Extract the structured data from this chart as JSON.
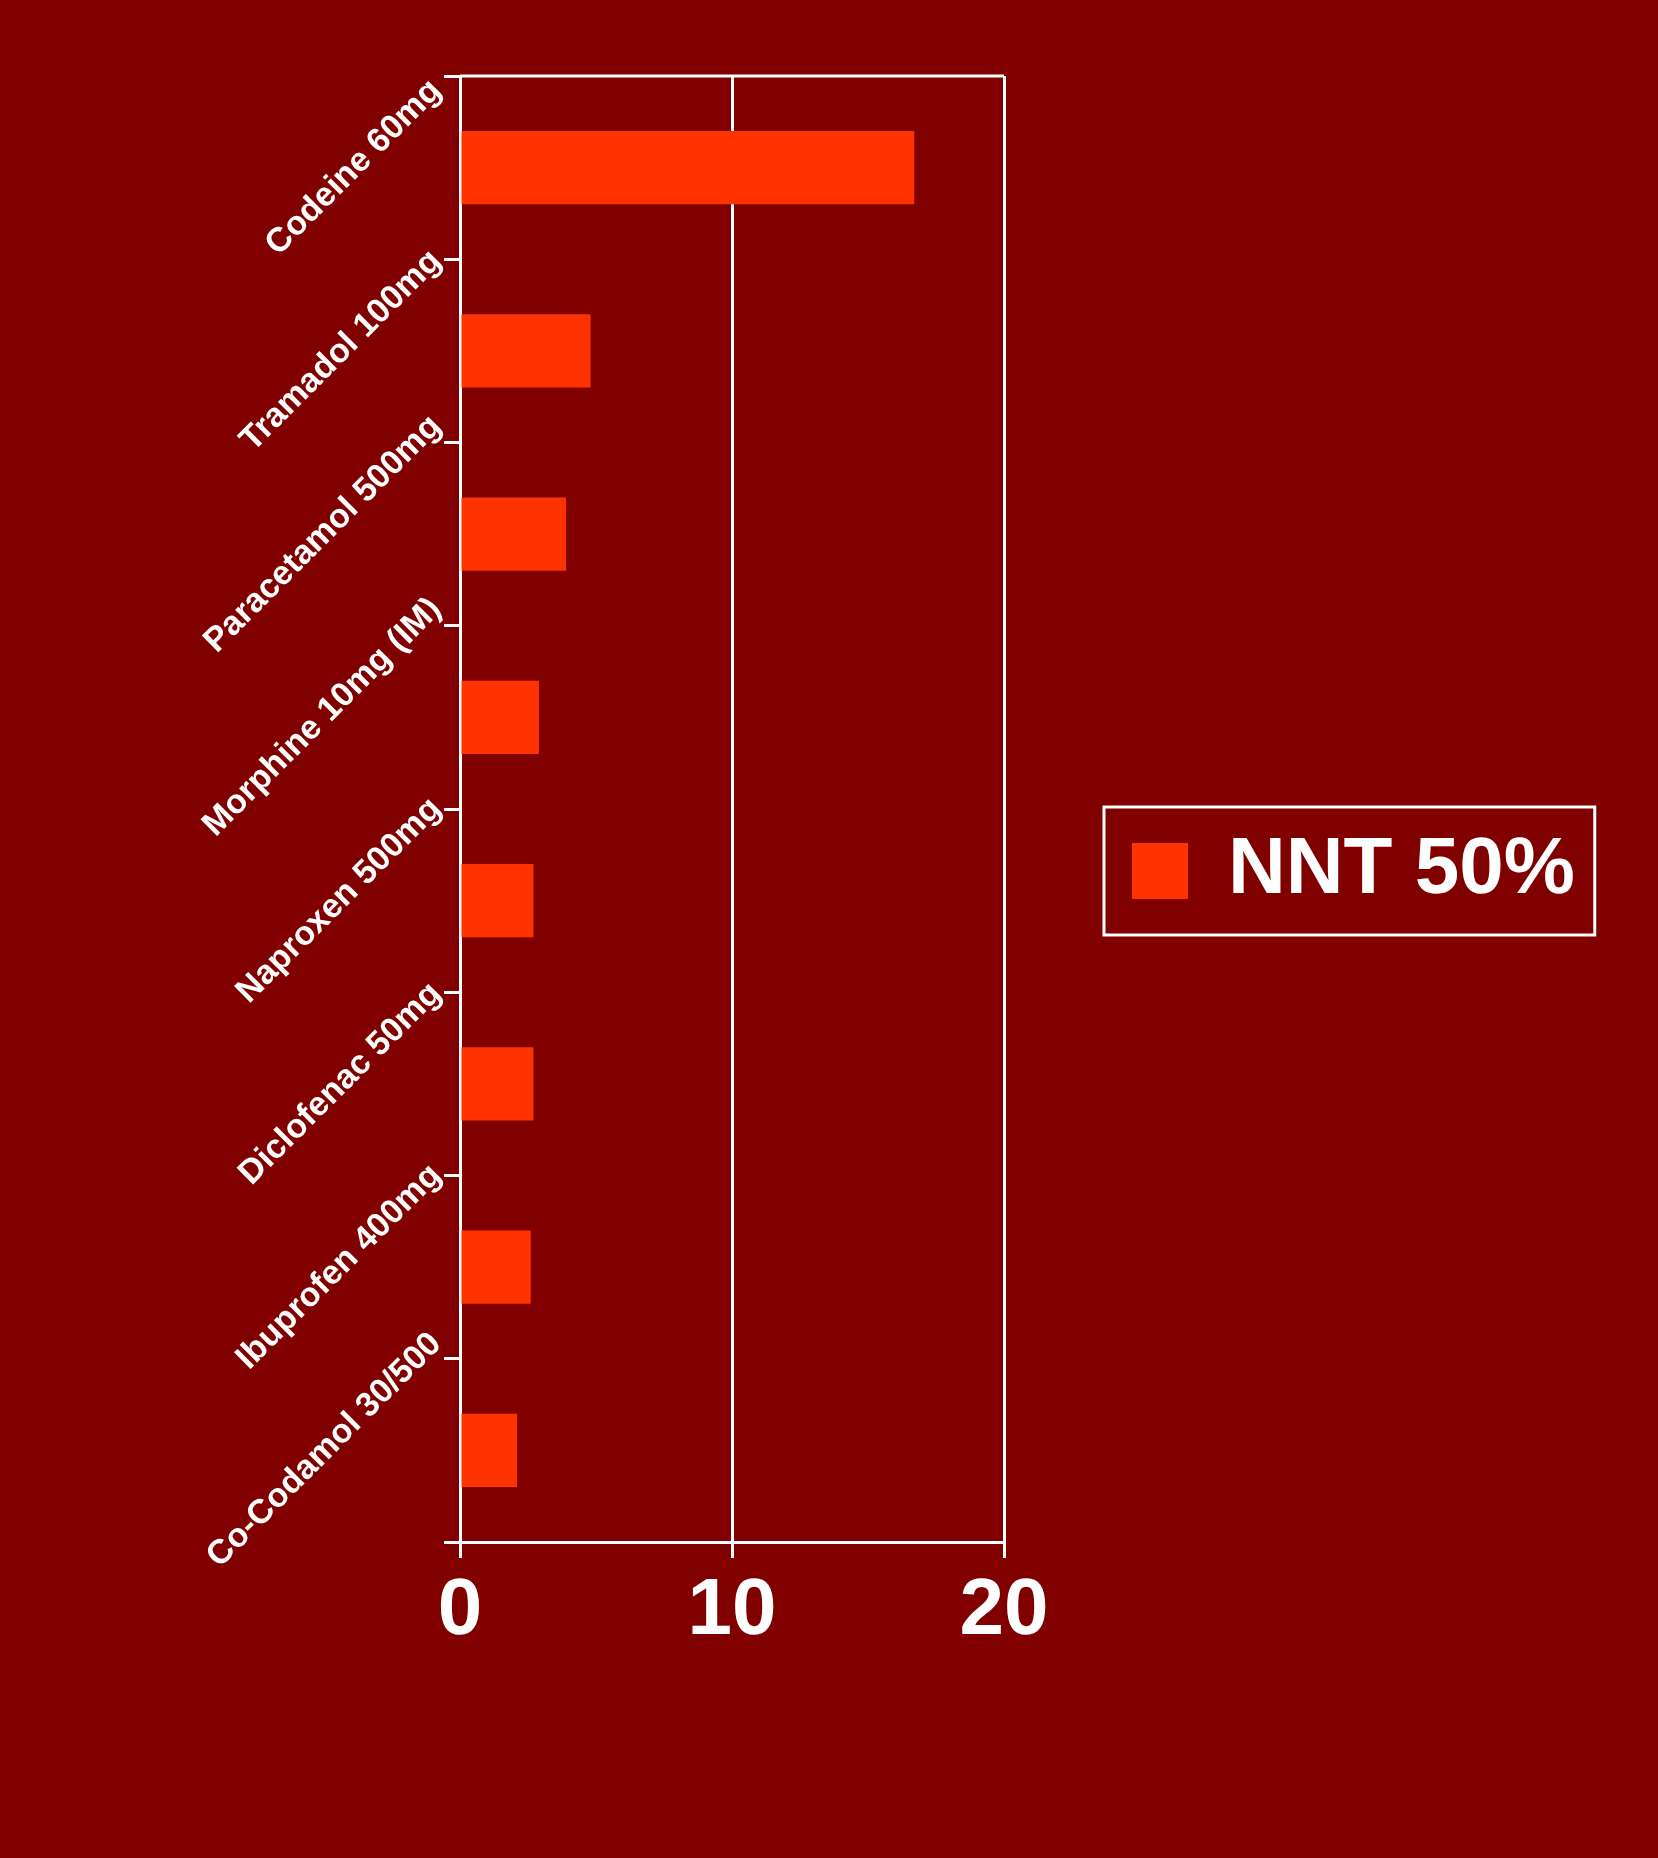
{
  "chart_data": {
    "type": "bar",
    "orientation": "horizontal",
    "categories": [
      "Codeine 60mg",
      "Tramadol 100mg",
      "Paracetamol 500mg",
      "Morphine 10mg (IM)",
      "Naproxen 500mg",
      "Diclofenac 50mg",
      "Ibuprofen 400mg",
      "Co-Codamol 30/500"
    ],
    "series": [
      {
        "name": "NNT 50%",
        "color": "#ff3300",
        "values": [
          16.7,
          4.8,
          3.9,
          2.9,
          2.7,
          2.7,
          2.6,
          2.1
        ]
      }
    ],
    "xlim": [
      0,
      20
    ],
    "xticks": [
      0,
      10,
      20
    ],
    "grid": "x",
    "legend": "right"
  }
}
